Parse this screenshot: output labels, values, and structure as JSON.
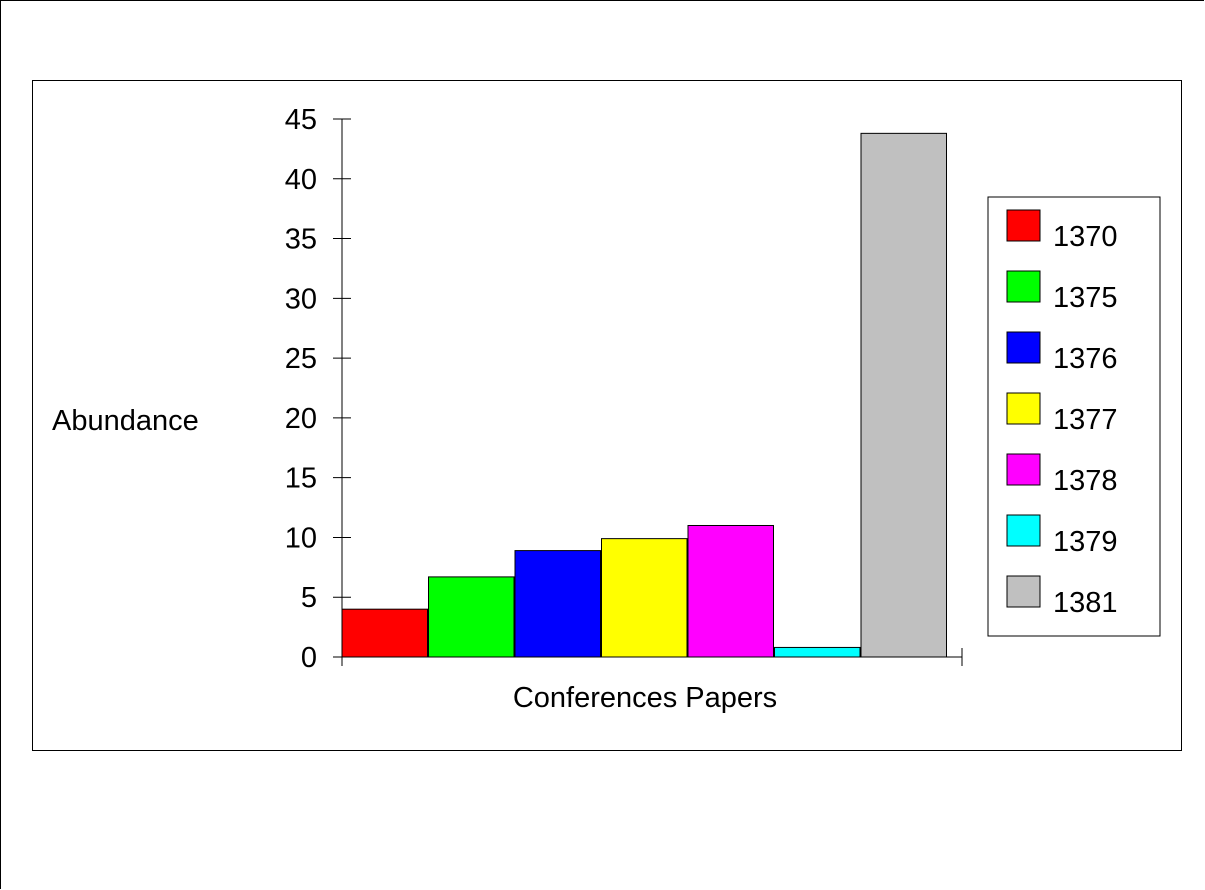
{
  "chart_data": {
    "type": "bar",
    "title": "",
    "xlabel": "Conferences Papers",
    "ylabel": "Abundance",
    "ylim": [
      0,
      45
    ],
    "yticks": [
      0,
      5,
      10,
      15,
      20,
      25,
      30,
      35,
      40,
      45
    ],
    "grid": false,
    "legend_position": "right",
    "series": [
      {
        "name": "1370",
        "value": 4,
        "color": "#ff0000"
      },
      {
        "name": "1375",
        "value": 6.7,
        "color": "#00ff00"
      },
      {
        "name": "1376",
        "value": 8.9,
        "color": "#0000ff"
      },
      {
        "name": "1377",
        "value": 9.9,
        "color": "#ffff00"
      },
      {
        "name": "1378",
        "value": 11,
        "color": "#ff00ff"
      },
      {
        "name": "1379",
        "value": 0.8,
        "color": "#00ffff"
      },
      {
        "name": "1381",
        "value": 43.8,
        "color": "#c0c0c0"
      }
    ]
  }
}
